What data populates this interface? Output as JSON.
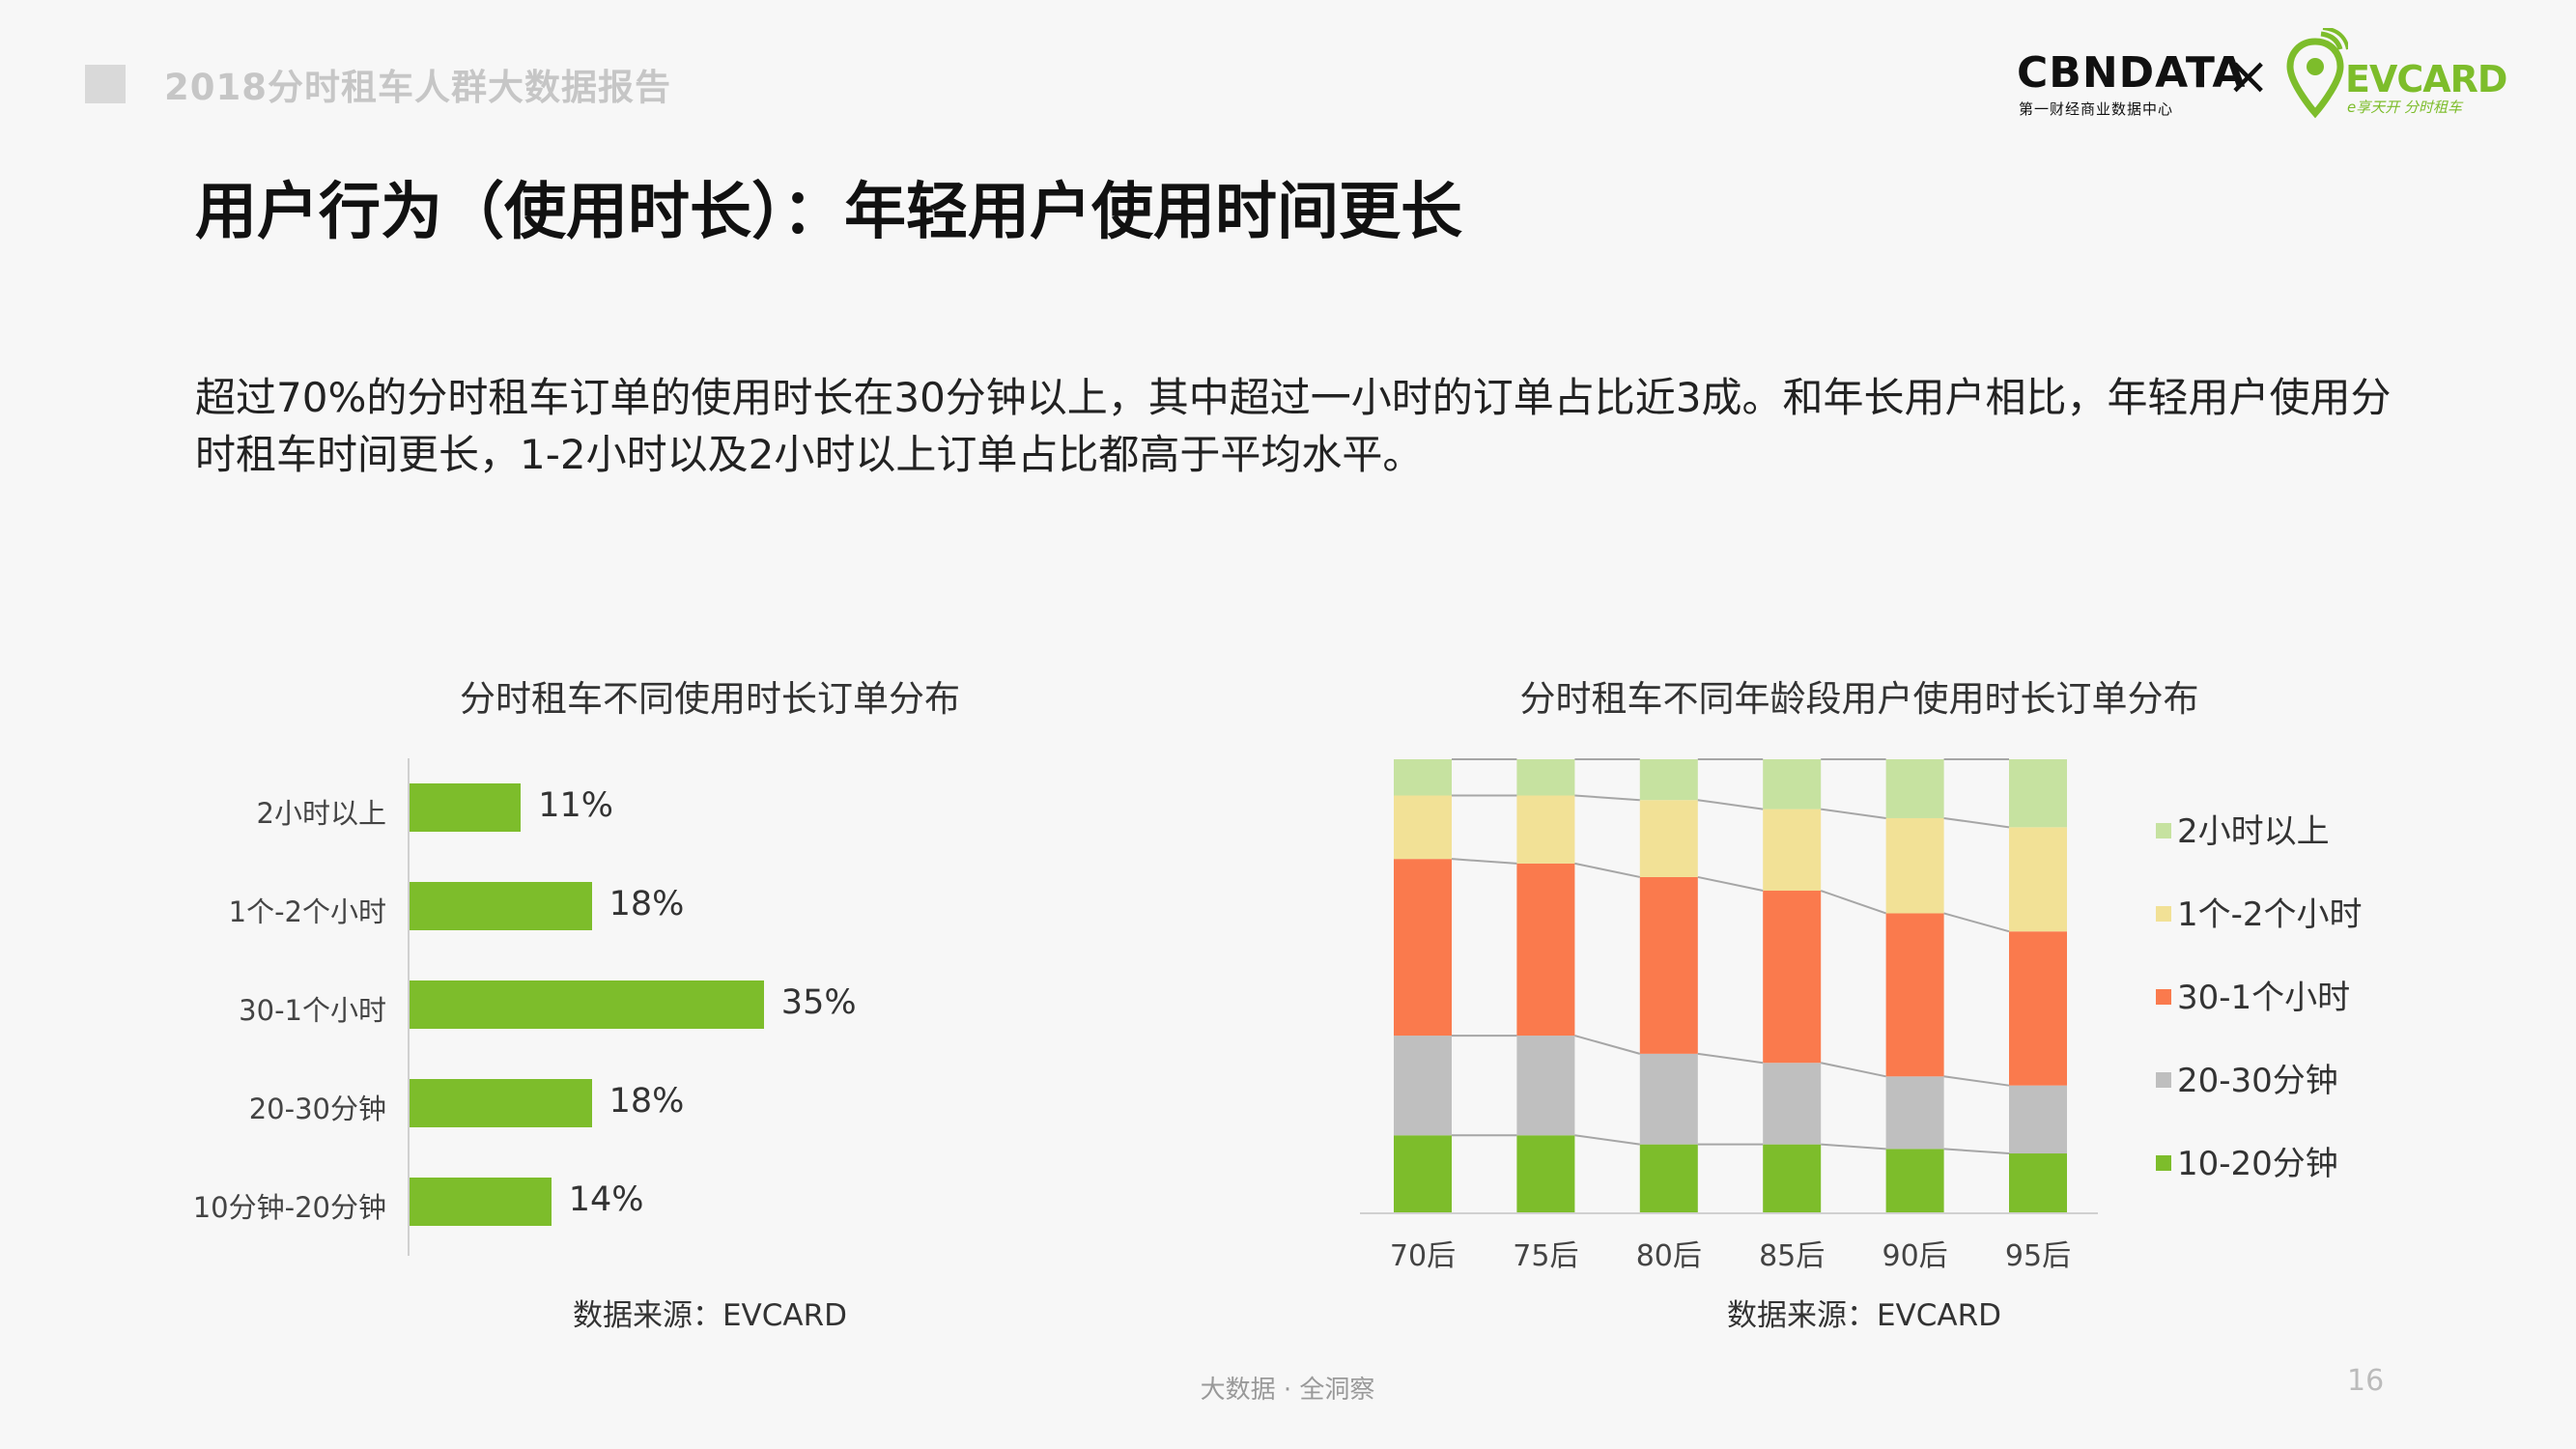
{
  "header": {
    "report_title": "2018分时租车人群大数据报告",
    "logo_cbn_main": "CBNDATA",
    "logo_cbn_sub": "第一财经商业数据中心",
    "logo_times": "×",
    "logo_ev_main": "EVCARD",
    "logo_ev_sub": "e享天开 分时租车"
  },
  "page_title": "用户行为（使用时长）：年轻用户使用时间更长",
  "body_text": "超过70%的分时租车订单的使用时长在30分钟以上，其中超过一小时的订单占比近3成。和年长用户相比，年轻用户使用分时租车时间更长，1-2小时以及2小时以上订单占比都高于平均水平。",
  "colors": {
    "green": "#7dbd2b",
    "light_green": "#c6e2a0",
    "yellow": "#f2e196",
    "orange": "#fa7a4d",
    "gray": "#bfbfbf"
  },
  "chart_data": [
    {
      "type": "bar",
      "orientation": "horizontal",
      "title": "分时租车不同使用时长订单分布",
      "source": "数据来源：EVCARD",
      "categories": [
        "2小时以上",
        "1个-2个小时",
        "30-1个小时",
        "20-30分钟",
        "10分钟-20分钟"
      ],
      "values": [
        11,
        18,
        35,
        18,
        14
      ],
      "value_labels": [
        "11%",
        "18%",
        "35%",
        "18%",
        "14%"
      ],
      "xlim": [
        0,
        40
      ],
      "grid": false
    },
    {
      "type": "bar",
      "stacked": true,
      "percent": true,
      "title": "分时租车不同年龄段用户使用时长订单分布",
      "source": "数据来源：EVCARD",
      "categories": [
        "70后",
        "75后",
        "80后",
        "85后",
        "90后",
        "95后"
      ],
      "series": [
        {
          "name": "10-20分钟",
          "values": [
            17,
            17,
            15,
            15,
            14,
            13
          ]
        },
        {
          "name": "20-30分钟",
          "values": [
            22,
            22,
            20,
            18,
            16,
            15
          ]
        },
        {
          "name": "30-1个小时",
          "values": [
            39,
            38,
            39,
            38,
            36,
            34
          ]
        },
        {
          "name": "1个-2个小时",
          "values": [
            14,
            15,
            17,
            18,
            21,
            23
          ]
        },
        {
          "name": "2小时以上",
          "values": [
            8,
            8,
            9,
            11,
            13,
            15
          ]
        }
      ],
      "ylim": [
        0,
        100
      ],
      "legend_position": "right",
      "grid": false
    }
  ],
  "footer": {
    "tagline": "大数据 · 全洞察",
    "page_number": "16"
  }
}
